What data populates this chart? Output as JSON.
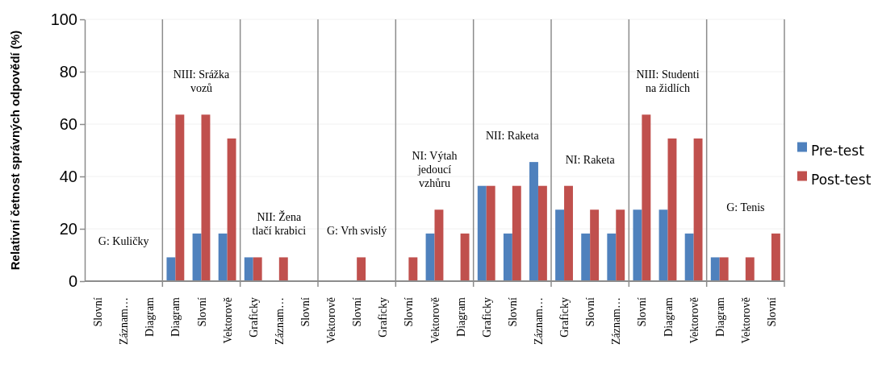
{
  "chart_data": {
    "type": "bar",
    "ylabel": "Relativní četnost správných odpovědí (%)",
    "categories": [
      "Slovní",
      "Záznam…",
      "Diagram",
      "Diagram",
      "Slovní",
      "Vektorově",
      "Graficky",
      "Záznam…",
      "Slovní",
      "Vektorově",
      "Slovní",
      "Graficky",
      "Slovní",
      "Vektorově",
      "Diagram",
      "Graficky",
      "Slovní",
      "Záznam…",
      "Graficky",
      "Slovní",
      "Záznam…",
      "Slovní",
      "Diagram",
      "Vektorově",
      "Diagram",
      "Vektorově",
      "Slovní"
    ],
    "series": [
      {
        "name": "Pre-test",
        "color": "#4f81bd",
        "values": [
          0,
          0,
          0,
          9.1,
          18.2,
          18.2,
          9.1,
          0,
          0,
          0,
          0,
          0,
          0,
          18.2,
          0,
          36.4,
          18.2,
          45.5,
          27.3,
          18.2,
          18.2,
          27.3,
          27.3,
          18.2,
          9.1,
          0,
          0
        ]
      },
      {
        "name": "Post-test",
        "color": "#c0504d",
        "values": [
          0,
          0,
          0,
          63.6,
          63.6,
          54.5,
          9.1,
          9.1,
          0,
          0,
          9.1,
          0,
          9.1,
          27.3,
          18.2,
          36.4,
          36.4,
          36.4,
          36.4,
          27.3,
          27.3,
          63.6,
          54.5,
          54.5,
          9.1,
          9.1,
          18.2
        ]
      }
    ],
    "annotations": [
      "G: Kuličky",
      "NIII: Srážka vozů",
      "NII: Žena tlačí krabici",
      "G: Vrh svislý",
      "NI: Výtah jedoucí vzhůru",
      "NII: Raketa",
      "NI: Raketa",
      "NIII: Studenti na židlích",
      "G: Tenis"
    ],
    "ylim": [
      0,
      100
    ],
    "yticks": [
      0,
      20,
      40,
      60,
      80,
      100
    ],
    "grid": true,
    "legend": "right"
  }
}
